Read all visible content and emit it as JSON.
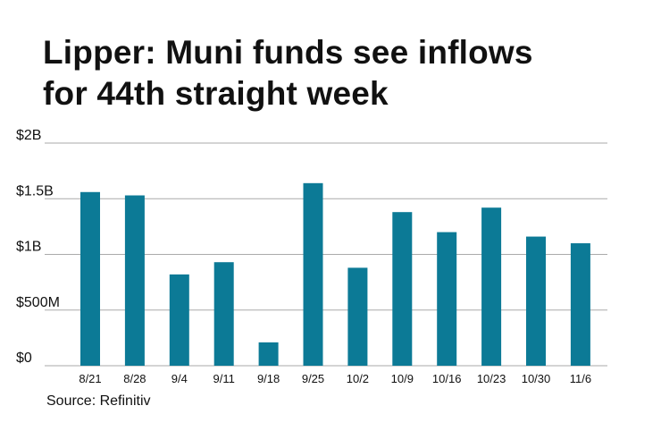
{
  "title_line1": "Lipper: Muni funds see inflows",
  "title_line2": "for 44th straight week",
  "source": "Source: Refinitiv",
  "colors": {
    "bar": "#0c7a96",
    "grid": "#aaaaaa",
    "text": "#111111"
  },
  "chart_data": {
    "type": "bar",
    "title": "Lipper: Muni funds see inflows for 44th straight week",
    "xlabel": "",
    "ylabel": "",
    "categories": [
      "8/21",
      "8/28",
      "9/4",
      "9/11",
      "9/18",
      "9/25",
      "10/2",
      "10/9",
      "10/16",
      "10/23",
      "10/30",
      "11/6"
    ],
    "values": [
      1.56,
      1.53,
      0.82,
      0.93,
      0.21,
      1.64,
      0.88,
      1.38,
      1.2,
      1.42,
      1.16,
      1.1
    ],
    "units": "$B",
    "ylim": [
      0,
      2
    ],
    "yticks": [
      0,
      0.5,
      1,
      1.5,
      2
    ],
    "ytick_labels": [
      "$0",
      "$500M",
      "$1B",
      "$1.5B",
      "$2B"
    ],
    "grid": true,
    "legend": "none"
  }
}
